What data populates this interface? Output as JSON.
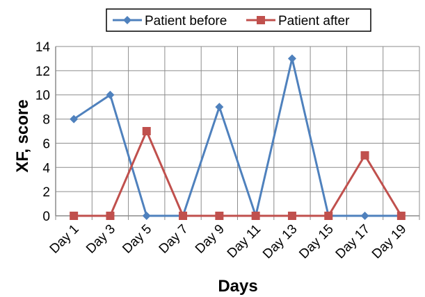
{
  "chart_data": {
    "type": "line",
    "categories": [
      "Day 1",
      "Day 3",
      "Day 5",
      "Day 7",
      "Day 9",
      "Day 11",
      "Day 13",
      "Day 15",
      "Day 17",
      "Day 19"
    ],
    "series": [
      {
        "name": "Patient before",
        "values": [
          8,
          10,
          0,
          0,
          9,
          0,
          13,
          0,
          0,
          0
        ],
        "color": "#4F81BD",
        "marker": "diamond"
      },
      {
        "name": "Patient after",
        "values": [
          0,
          0,
          7,
          0,
          0,
          0,
          0,
          0,
          5,
          0
        ],
        "color": "#C0504D",
        "marker": "square"
      }
    ],
    "xlabel": "Days",
    "ylabel": "XF, score",
    "ylim": [
      0,
      14
    ],
    "yticks": [
      0,
      2,
      4,
      6,
      8,
      10,
      12,
      14
    ],
    "grid": true,
    "legend": "top-center"
  }
}
